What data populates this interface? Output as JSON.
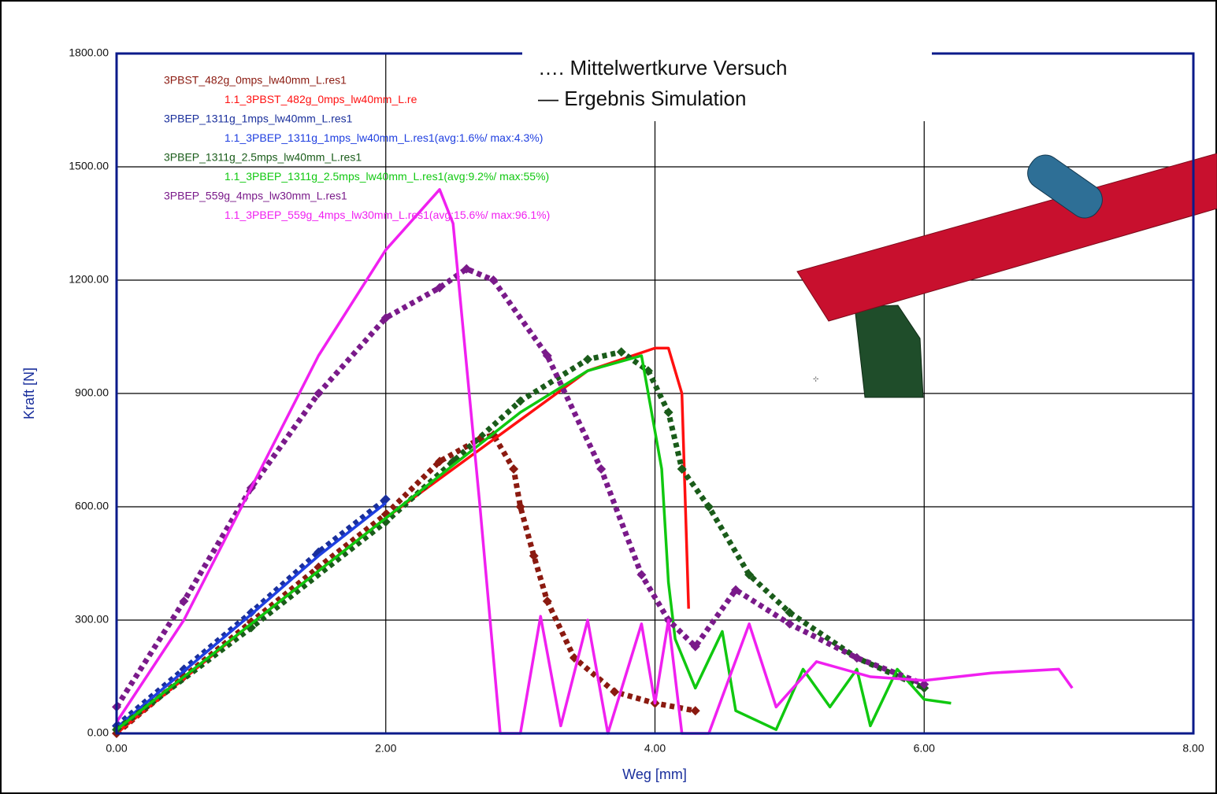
{
  "chart_data": {
    "type": "line",
    "xlabel": "Weg [mm]",
    "ylabel": "Kraft [N]",
    "xlim": [
      0,
      8
    ],
    "ylim": [
      0,
      1800
    ],
    "xticks": [
      {
        "value": 0,
        "label": "0.00"
      },
      {
        "value": 2,
        "label": "2.00"
      },
      {
        "value": 4,
        "label": "4.00"
      },
      {
        "value": 6,
        "label": "6.00"
      },
      {
        "value": 8,
        "label": "8.00"
      }
    ],
    "yticks": [
      {
        "value": 0,
        "label": "0.00"
      },
      {
        "value": 300,
        "label": "300.00"
      },
      {
        "value": 600,
        "label": "600.00"
      },
      {
        "value": 900,
        "label": "900.00"
      },
      {
        "value": 1200,
        "label": "1200.00"
      },
      {
        "value": 1500,
        "label": "1500.00"
      },
      {
        "value": 1800,
        "label": "1800.00"
      }
    ],
    "grid": true,
    "annotations": [
      "…. Mittelwertkurve Versuch",
      "— Ergebnis Simulation"
    ],
    "series": [
      {
        "name": "3PBST_482g_0mps_lw40mm_L.res1",
        "color": "#8b1a10",
        "style": "markers",
        "x": [
          0,
          0.5,
          1,
          1.5,
          2,
          2.4,
          2.7,
          2.8,
          2.95,
          3.0,
          3.1,
          3.2,
          3.4,
          3.7,
          4.0,
          4.3
        ],
        "values": [
          0,
          150,
          295,
          440,
          580,
          720,
          780,
          790,
          700,
          600,
          470,
          350,
          200,
          110,
          80,
          60
        ]
      },
      {
        "name": "1.1_3PBST_482g_0mps_lw40mm_L.re",
        "color": "#ff1010",
        "style": "line",
        "x": [
          0,
          1,
          2,
          2.5,
          3,
          3.5,
          4.0,
          4.1,
          4.2,
          4.25
        ],
        "values": [
          0,
          290,
          570,
          700,
          830,
          960,
          1020,
          1020,
          900,
          330
        ]
      },
      {
        "name": "3PBEP_1311g_1mps_lw40mm_L.res1",
        "color": "#1a2f9c",
        "style": "markers",
        "x": [
          0,
          0.5,
          1,
          1.5,
          2.0
        ],
        "values": [
          20,
          170,
          320,
          480,
          620
        ]
      },
      {
        "name": "1.1_3PBEP_1311g_1mps_lw40mm_L.res1(avg:1.6%/ max:4.3%)",
        "color": "#1f3fe0",
        "style": "line",
        "x": [
          0,
          0.5,
          1,
          1.5,
          2.0
        ],
        "values": [
          15,
          165,
          315,
          470,
          610
        ]
      },
      {
        "name": "3PBEP_1311g_2.5mps_lw40mm_L.res1",
        "color": "#1a5c1a",
        "style": "markers",
        "x": [
          0,
          1,
          2,
          2.5,
          3,
          3.5,
          3.75,
          3.95,
          4.1,
          4.2,
          4.4,
          4.7,
          5.0,
          5.5,
          6.0
        ],
        "values": [
          10,
          280,
          560,
          720,
          880,
          990,
          1010,
          960,
          850,
          700,
          600,
          420,
          320,
          200,
          120
        ]
      },
      {
        "name": "1.1_3PBEP_1311g_2.5mps_lw40mm_L.res1(avg:9.2%/ max:55%)",
        "color": "#10c810",
        "style": "line",
        "x": [
          0,
          2,
          3,
          3.5,
          3.9,
          4.05,
          4.1,
          4.15,
          4.3,
          4.5,
          4.6,
          4.9,
          5.1,
          5.3,
          5.5,
          5.6,
          5.8,
          6.0,
          6.2
        ],
        "values": [
          10,
          570,
          850,
          960,
          1000,
          700,
          400,
          250,
          120,
          270,
          60,
          10,
          170,
          70,
          170,
          20,
          170,
          90,
          80
        ]
      },
      {
        "name": "3PBEP_559g_4mps_lw30mm_L.res1",
        "color": "#7a1a8a",
        "style": "markers",
        "x": [
          0,
          0.5,
          1,
          1.5,
          2,
          2.4,
          2.6,
          2.8,
          3.2,
          3.6,
          3.9,
          4.1,
          4.3,
          4.6,
          5.0,
          5.5,
          6.0
        ],
        "values": [
          70,
          350,
          650,
          900,
          1100,
          1180,
          1230,
          1200,
          1000,
          700,
          420,
          300,
          230,
          380,
          290,
          200,
          130
        ]
      },
      {
        "name": "1.1_3PBEP_559g_4mps_lw30mm_L.res1(avg:15.6%/ max:96.1%)",
        "color": "#f020f0",
        "style": "line",
        "x": [
          0,
          0.5,
          1,
          1.5,
          2,
          2.4,
          2.5,
          2.7,
          2.85,
          3.0,
          3.15,
          3.3,
          3.5,
          3.65,
          3.9,
          4.0,
          4.1,
          4.2,
          4.4,
          4.7,
          4.9,
          5.2,
          5.6,
          6.0,
          6.5,
          7.0,
          7.1
        ],
        "values": [
          30,
          300,
          650,
          1000,
          1280,
          1440,
          1350,
          600,
          0,
          0,
          310,
          20,
          300,
          0,
          290,
          80,
          300,
          0,
          0,
          290,
          70,
          190,
          150,
          140,
          160,
          170,
          120
        ]
      }
    ]
  }
}
